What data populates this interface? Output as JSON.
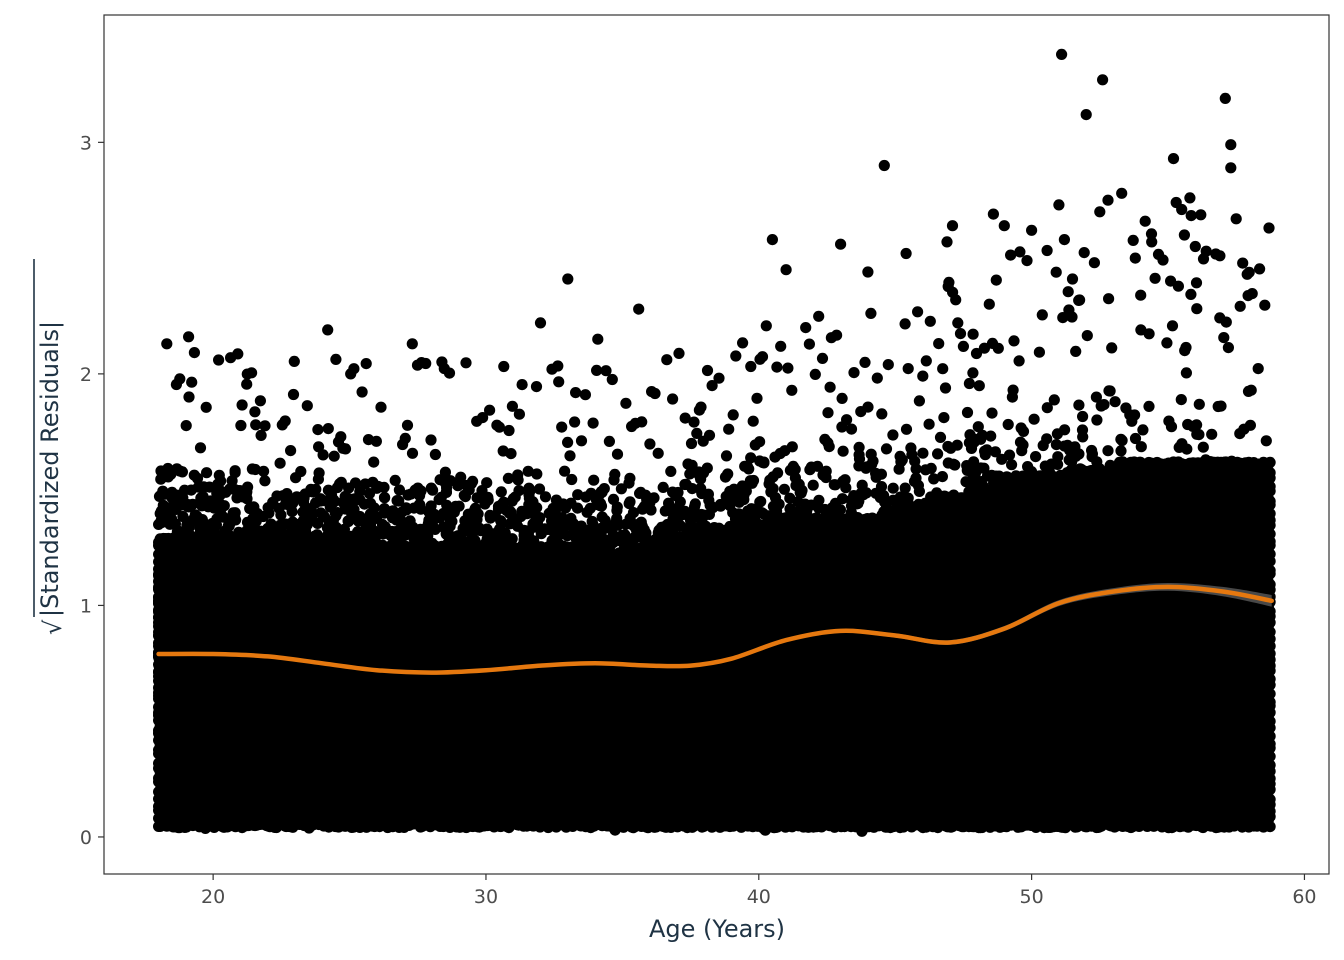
{
  "chart_data": {
    "type": "scatter",
    "xlabel": "Age (Years)",
    "ylabel_radical": "√",
    "ylabel": "|Standardized Residuals|",
    "xlim": [
      16,
      60.9
    ],
    "ylim": [
      -0.16,
      3.55
    ],
    "x_ticks": [
      20,
      30,
      40,
      50,
      60
    ],
    "y_ticks": [
      0,
      1,
      2,
      3
    ],
    "grid": false,
    "legend": "none",
    "colors": {
      "points": "#000000",
      "smooth": "#e5780f",
      "band": "#555555"
    },
    "point_density_profile": [
      {
        "x": 18,
        "n": 1600,
        "ymax": 1.65
      },
      {
        "x": 25,
        "n": 1500,
        "ymax": 1.62
      },
      {
        "x": 30,
        "n": 1400,
        "ymax": 1.6
      },
      {
        "x": 35,
        "n": 1300,
        "ymax": 1.6
      },
      {
        "x": 40,
        "n": 1000,
        "ymax": 1.75
      },
      {
        "x": 45,
        "n": 800,
        "ymax": 1.8
      },
      {
        "x": 50,
        "n": 500,
        "ymax": 2.0
      },
      {
        "x": 55,
        "n": 300,
        "ymax": 2.1
      },
      {
        "x": 58.8,
        "n": 200,
        "ymax": 2.1
      }
    ],
    "outliers": [
      [
        18.3,
        2.13
      ],
      [
        19.1,
        2.16
      ],
      [
        20.2,
        2.06
      ],
      [
        24.2,
        2.19
      ],
      [
        27.3,
        2.13
      ],
      [
        32.0,
        2.22
      ],
      [
        33.0,
        2.41
      ],
      [
        34.1,
        2.15
      ],
      [
        35.6,
        2.28
      ],
      [
        40.5,
        2.58
      ],
      [
        41.0,
        2.45
      ],
      [
        43.0,
        2.56
      ],
      [
        44.0,
        2.44
      ],
      [
        44.6,
        2.9
      ],
      [
        45.4,
        2.52
      ],
      [
        46.9,
        2.57
      ],
      [
        47.1,
        2.64
      ],
      [
        48.6,
        2.69
      ],
      [
        49.0,
        2.64
      ],
      [
        50.0,
        2.62
      ],
      [
        51.0,
        2.73
      ],
      [
        51.1,
        3.38
      ],
      [
        51.2,
        2.58
      ],
      [
        51.5,
        2.41
      ],
      [
        52.0,
        3.12
      ],
      [
        52.3,
        2.48
      ],
      [
        52.5,
        2.7
      ],
      [
        52.6,
        3.27
      ],
      [
        52.8,
        2.75
      ],
      [
        53.3,
        2.78
      ],
      [
        53.8,
        2.5
      ],
      [
        54.0,
        2.34
      ],
      [
        54.4,
        2.57
      ],
      [
        55.2,
        2.93
      ],
      [
        55.3,
        2.74
      ],
      [
        55.5,
        2.71
      ],
      [
        55.6,
        2.6
      ],
      [
        55.8,
        2.76
      ],
      [
        56.0,
        2.55
      ],
      [
        56.4,
        2.53
      ],
      [
        56.9,
        2.51
      ],
      [
        57.1,
        3.19
      ],
      [
        57.3,
        2.99
      ],
      [
        57.3,
        2.89
      ],
      [
        57.5,
        2.67
      ],
      [
        57.9,
        2.43
      ],
      [
        58.7,
        2.63
      ]
    ],
    "smooth": {
      "x": [
        18,
        20,
        22,
        24,
        26,
        28,
        30,
        32,
        34,
        36,
        37.5,
        39,
        41,
        43,
        45,
        47,
        49,
        51,
        53,
        55,
        57,
        58.8
      ],
      "y": [
        0.79,
        0.79,
        0.78,
        0.75,
        0.72,
        0.71,
        0.72,
        0.74,
        0.75,
        0.74,
        0.74,
        0.77,
        0.85,
        0.89,
        0.87,
        0.84,
        0.9,
        1.01,
        1.06,
        1.08,
        1.06,
        1.02
      ],
      "band_halfwidth": [
        0.006,
        0.005,
        0.005,
        0.005,
        0.005,
        0.005,
        0.005,
        0.005,
        0.005,
        0.005,
        0.005,
        0.006,
        0.007,
        0.008,
        0.009,
        0.01,
        0.011,
        0.013,
        0.015,
        0.017,
        0.02,
        0.025
      ]
    }
  }
}
